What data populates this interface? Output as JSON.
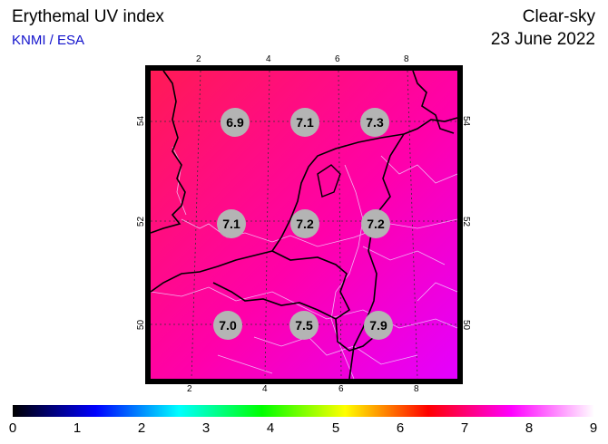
{
  "header": {
    "title": "Erythemal UV index",
    "credit": "KNMI / ESA",
    "sky_condition": "Clear-sky",
    "date": "23 June 2022"
  },
  "map": {
    "background_gradient": [
      "#ff1a55",
      "#ff00aa",
      "#e800ff"
    ],
    "top_ticks": [
      "2",
      "4",
      "6",
      "8"
    ],
    "bottom_ticks": [
      "2",
      "4",
      "6",
      "8"
    ],
    "left_ticks": [
      "54",
      "52",
      "50"
    ],
    "right_ticks": [
      "54",
      "52",
      "50"
    ],
    "values": [
      {
        "value": "6.9"
      },
      {
        "value": "7.1"
      },
      {
        "value": "7.3"
      },
      {
        "value": "7.1"
      },
      {
        "value": "7.2"
      },
      {
        "value": "7.2"
      },
      {
        "value": "7.0"
      },
      {
        "value": "7.5"
      },
      {
        "value": "7.9"
      }
    ]
  },
  "colorbar": {
    "labels": [
      "0",
      "1",
      "2",
      "3",
      "4",
      "5",
      "6",
      "7",
      "8",
      "9"
    ],
    "colors": [
      "#000000",
      "#0000ff",
      "#00ffff",
      "#00ff00",
      "#ffff00",
      "#ff0000",
      "#ff00ff",
      "#ffffff"
    ]
  }
}
